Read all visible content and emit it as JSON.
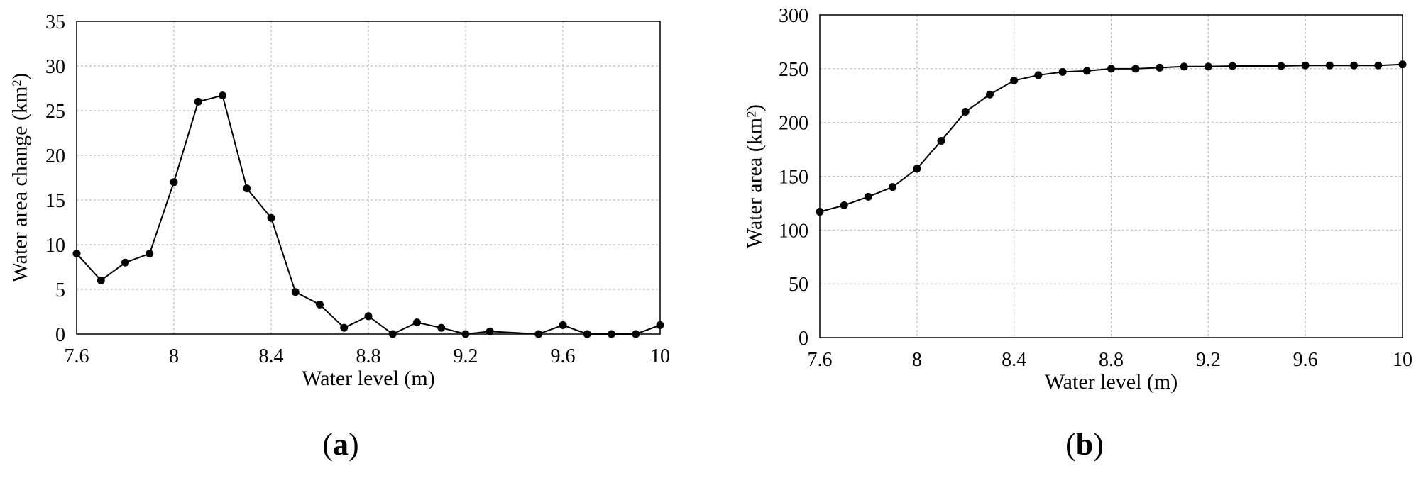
{
  "chart_data": [
    {
      "type": "line",
      "panel_label": "a",
      "xlabel": "Water level (m)",
      "ylabel": "Water area change (km²)",
      "xlim": [
        7.6,
        10
      ],
      "ylim": [
        0,
        35
      ],
      "xticks": [
        "7.6",
        "8",
        "8.4",
        "8.8",
        "9.2",
        "9.6",
        "10"
      ],
      "yticks": [
        "0",
        "5",
        "10",
        "15",
        "20",
        "25",
        "30",
        "35"
      ],
      "grid": true,
      "series": [
        {
          "x": [
            7.6,
            7.7,
            7.8,
            7.9,
            8.0,
            8.1,
            8.2,
            8.3,
            8.4,
            8.5,
            8.6,
            8.7,
            8.8,
            8.9,
            9.0,
            9.1,
            9.2,
            9.3,
            9.5,
            9.6,
            9.7,
            9.8,
            9.9,
            10.0
          ],
          "y": [
            9,
            6,
            8,
            9,
            17,
            26,
            26.7,
            16.3,
            13,
            4.7,
            3.3,
            0.7,
            2,
            0,
            1.3,
            0.7,
            0,
            0.3,
            0,
            1,
            0,
            0,
            0,
            1
          ],
          "color": "#000000"
        }
      ]
    },
    {
      "type": "line",
      "panel_label": "b",
      "xlabel": "Water level (m)",
      "ylabel": "Water area (km²)",
      "xlim": [
        7.6,
        10
      ],
      "ylim": [
        0,
        300
      ],
      "xticks": [
        "7.6",
        "8",
        "8.4",
        "8.8",
        "9.2",
        "9.6",
        "10"
      ],
      "yticks": [
        "0",
        "50",
        "100",
        "150",
        "200",
        "250",
        "300"
      ],
      "grid": true,
      "series": [
        {
          "x": [
            7.6,
            7.7,
            7.8,
            7.9,
            8.0,
            8.1,
            8.2,
            8.3,
            8.4,
            8.5,
            8.6,
            8.7,
            8.8,
            8.9,
            9.0,
            9.1,
            9.2,
            9.3,
            9.5,
            9.6,
            9.7,
            9.8,
            9.9,
            10.0
          ],
          "y": [
            117,
            123,
            131,
            140,
            157,
            183,
            210,
            226,
            239,
            244,
            247,
            248,
            250,
            250,
            251,
            252,
            252,
            252.5,
            252.5,
            253,
            253,
            253,
            253,
            254
          ],
          "color": "#000000"
        }
      ]
    }
  ]
}
